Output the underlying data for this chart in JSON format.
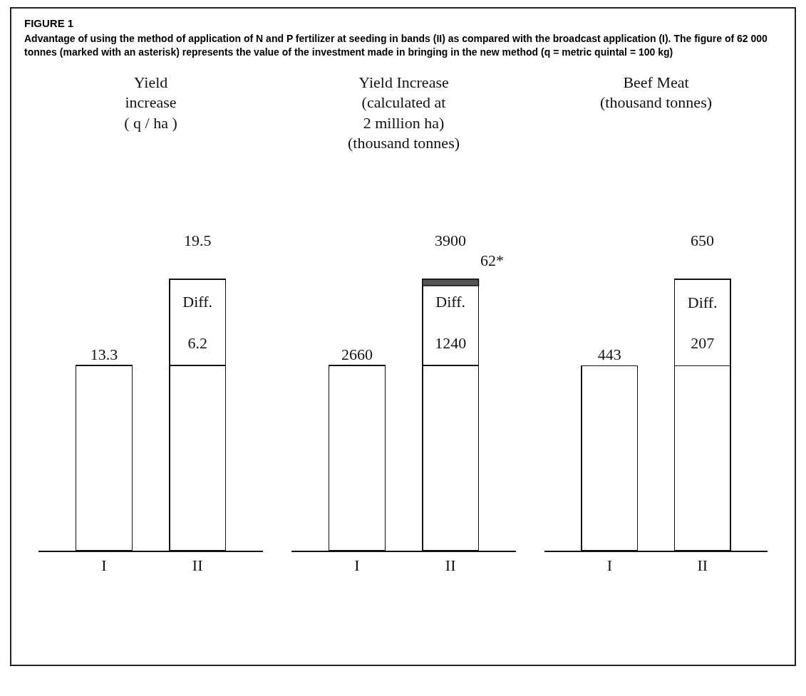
{
  "chart_data": [
    {
      "type": "other",
      "title": "FIGURE 1",
      "subtitle": "Advantage of using the method of application of N and P fertilizer at seeding in bands (II) as compared with the broadcast application (I). The figure of 62 000 tonnes (marked with an asterisk) represents the value of the investment made in bringing in the new method (q = metric quintal = 100 kg)"
    },
    {
      "type": "bar",
      "stacked": true,
      "title": "Yield\nincrease\n( q / ha )",
      "categories": [
        "I",
        "II"
      ],
      "tick_labels": "x",
      "series": [
        {
          "color": "#ffffff",
          "values": [
            13.3,
            13.3
          ],
          "value_labels": [
            "13.3",
            null
          ]
        },
        {
          "name": "Diff.",
          "color": "#ffffff",
          "values": [
            null,
            6.2
          ],
          "value_labels": [
            null,
            "6.2"
          ]
        }
      ],
      "totals": [
        null,
        "19.5"
      ]
    },
    {
      "type": "bar",
      "stacked": true,
      "title": "Yield Increase\n(calculated at\n2 million ha)\n(thousand tonnes)",
      "categories": [
        "I",
        "II"
      ],
      "tick_labels": "x",
      "series": [
        {
          "color": "#ffffff",
          "values": [
            2660,
            2660
          ],
          "value_labels": [
            "2660",
            null
          ]
        },
        {
          "name": "Diff.",
          "color": "#ffffff",
          "values": [
            null,
            1240
          ],
          "value_labels": [
            null,
            "1240"
          ]
        }
      ],
      "totals": [
        null,
        "3900"
      ],
      "annotations": [
        "62*"
      ]
    },
    {
      "type": "bar",
      "stacked": true,
      "title": "Beef Meat\n(thousand tonnes)",
      "categories": [
        "I",
        "II"
      ],
      "tick_labels": "x",
      "series": [
        {
          "color": "#ffffff",
          "values": [
            443,
            443
          ],
          "value_labels": [
            "443",
            null
          ]
        },
        {
          "name": "Diff.",
          "color": "#ffffff",
          "values": [
            null,
            207
          ],
          "value_labels": [
            null,
            "207"
          ]
        }
      ],
      "totals": [
        null,
        "650"
      ]
    }
  ]
}
